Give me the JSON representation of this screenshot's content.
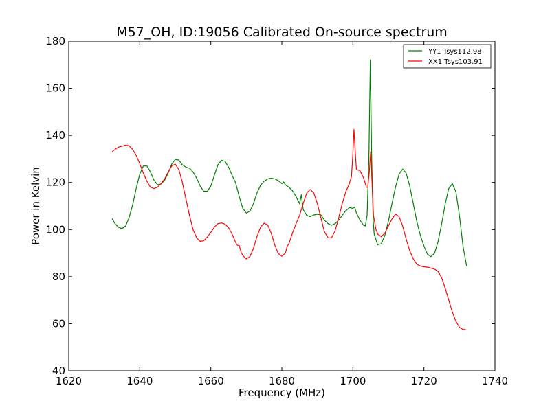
{
  "chart_data": {
    "type": "line",
    "title": "M57_OH, ID:19056 Calibrated On-source spectrum",
    "xlabel": "Frequency (MHz)",
    "ylabel": "Power in Kelvin",
    "xlim": [
      1620,
      1740
    ],
    "ylim": [
      40,
      180
    ],
    "xticks": [
      1620,
      1640,
      1660,
      1680,
      1700,
      1720,
      1740
    ],
    "yticks": [
      40,
      60,
      80,
      100,
      120,
      140,
      160,
      180
    ],
    "grid": false,
    "legend_position": "top-right",
    "series": [
      {
        "name": "YY1 Tsys112.98",
        "color": "#008000",
        "points": [
          [
            1632.2,
            104.7
          ],
          [
            1633.0,
            102.5
          ],
          [
            1634.0,
            101.0
          ],
          [
            1635.0,
            100.4
          ],
          [
            1636.0,
            101.5
          ],
          [
            1637.0,
            105.0
          ],
          [
            1638.0,
            110.5
          ],
          [
            1639.0,
            117.5
          ],
          [
            1640.0,
            123.5
          ],
          [
            1641.0,
            127.0
          ],
          [
            1642.0,
            127.0
          ],
          [
            1643.0,
            124.5
          ],
          [
            1644.0,
            121.0
          ],
          [
            1645.0,
            119.0
          ],
          [
            1646.0,
            119.3
          ],
          [
            1647.0,
            121.0
          ],
          [
            1648.0,
            124.0
          ],
          [
            1649.0,
            127.8
          ],
          [
            1650.0,
            129.8
          ],
          [
            1651.0,
            129.5
          ],
          [
            1652.0,
            127.5
          ],
          [
            1653.0,
            126.5
          ],
          [
            1654.0,
            126.0
          ],
          [
            1655.0,
            124.5
          ],
          [
            1656.0,
            121.8
          ],
          [
            1657.0,
            118.5
          ],
          [
            1658.0,
            116.3
          ],
          [
            1659.0,
            116.2
          ],
          [
            1660.0,
            118.5
          ],
          [
            1661.0,
            123.0
          ],
          [
            1662.0,
            127.5
          ],
          [
            1663.0,
            129.4
          ],
          [
            1664.0,
            129.0
          ],
          [
            1665.0,
            126.5
          ],
          [
            1666.0,
            123.0
          ],
          [
            1667.0,
            119.8
          ],
          [
            1668.0,
            114.0
          ],
          [
            1669.0,
            109.0
          ],
          [
            1670.0,
            107.0
          ],
          [
            1671.0,
            107.8
          ],
          [
            1672.0,
            111.0
          ],
          [
            1673.0,
            115.5
          ],
          [
            1674.0,
            118.8
          ],
          [
            1675.0,
            120.5
          ],
          [
            1676.0,
            121.5
          ],
          [
            1677.0,
            121.8
          ],
          [
            1678.0,
            121.5
          ],
          [
            1679.0,
            120.8
          ],
          [
            1680.0,
            119.5
          ],
          [
            1680.5,
            120.2
          ],
          [
            1681.0,
            119.0
          ],
          [
            1682.0,
            118.0
          ],
          [
            1683.0,
            116.5
          ],
          [
            1684.0,
            114.0
          ],
          [
            1685.0,
            111.0
          ],
          [
            1685.5,
            114.8
          ],
          [
            1686.0,
            108.5
          ],
          [
            1687.0,
            106.0
          ],
          [
            1688.0,
            105.5
          ],
          [
            1689.0,
            106.2
          ],
          [
            1690.0,
            106.5
          ],
          [
            1691.0,
            106.2
          ],
          [
            1692.0,
            104.0
          ],
          [
            1693.0,
            102.5
          ],
          [
            1694.0,
            101.8
          ],
          [
            1695.0,
            102.5
          ],
          [
            1696.0,
            104.0
          ],
          [
            1697.0,
            106.0
          ],
          [
            1698.0,
            108.0
          ],
          [
            1699.0,
            109.3
          ],
          [
            1700.0,
            109.0
          ],
          [
            1700.5,
            109.5
          ],
          [
            1701.0,
            107.0
          ],
          [
            1702.0,
            104.0
          ],
          [
            1703.0,
            101.8
          ],
          [
            1703.5,
            101.5
          ],
          [
            1704.0,
            106.0
          ],
          [
            1704.5,
            130.0
          ],
          [
            1704.9,
            172.0
          ],
          [
            1705.3,
            130.0
          ],
          [
            1705.7,
            104.0
          ],
          [
            1706.0,
            98.0
          ],
          [
            1707.0,
            93.5
          ],
          [
            1708.0,
            94.0
          ],
          [
            1709.0,
            97.5
          ],
          [
            1710.0,
            103.5
          ],
          [
            1711.0,
            111.0
          ],
          [
            1712.0,
            118.0
          ],
          [
            1713.0,
            123.5
          ],
          [
            1714.0,
            125.7
          ],
          [
            1715.0,
            124.0
          ],
          [
            1716.0,
            118.5
          ],
          [
            1717.0,
            111.0
          ],
          [
            1718.0,
            103.5
          ],
          [
            1719.0,
            97.5
          ],
          [
            1720.0,
            93.0
          ],
          [
            1721.0,
            89.5
          ],
          [
            1722.0,
            88.5
          ],
          [
            1723.0,
            90.0
          ],
          [
            1724.0,
            95.0
          ],
          [
            1725.0,
            102.5
          ],
          [
            1726.0,
            111.0
          ],
          [
            1727.0,
            117.5
          ],
          [
            1728.0,
            119.5
          ],
          [
            1729.0,
            116.0
          ],
          [
            1730.0,
            106.0
          ],
          [
            1731.0,
            93.0
          ],
          [
            1732.0,
            84.5
          ]
        ]
      },
      {
        "name": "XX1 Tsys103.91",
        "color": "#ff0000",
        "points": [
          [
            1632.2,
            133.0
          ],
          [
            1633.0,
            134.0
          ],
          [
            1634.0,
            135.0
          ],
          [
            1635.0,
            135.4
          ],
          [
            1636.0,
            135.8
          ],
          [
            1637.0,
            135.6
          ],
          [
            1638.0,
            134.0
          ],
          [
            1639.0,
            131.5
          ],
          [
            1640.0,
            128.0
          ],
          [
            1641.0,
            124.0
          ],
          [
            1642.0,
            120.5
          ],
          [
            1643.0,
            118.0
          ],
          [
            1644.0,
            117.4
          ],
          [
            1645.0,
            118.0
          ],
          [
            1646.0,
            119.5
          ],
          [
            1647.0,
            121.5
          ],
          [
            1648.0,
            124.5
          ],
          [
            1649.0,
            127.0
          ],
          [
            1650.0,
            127.8
          ],
          [
            1651.0,
            125.5
          ],
          [
            1652.0,
            120.0
          ],
          [
            1653.0,
            113.0
          ],
          [
            1654.0,
            106.0
          ],
          [
            1655.0,
            100.0
          ],
          [
            1656.0,
            96.5
          ],
          [
            1657.0,
            95.0
          ],
          [
            1658.0,
            95.2
          ],
          [
            1659.0,
            96.8
          ],
          [
            1660.0,
            98.8
          ],
          [
            1661.0,
            101.0
          ],
          [
            1662.0,
            102.5
          ],
          [
            1663.0,
            102.8
          ],
          [
            1664.0,
            102.3
          ],
          [
            1665.0,
            100.8
          ],
          [
            1666.0,
            98.0
          ],
          [
            1667.0,
            94.5
          ],
          [
            1667.5,
            93.3
          ],
          [
            1668.0,
            93.3
          ],
          [
            1668.5,
            90.5
          ],
          [
            1669.0,
            89.0
          ],
          [
            1670.0,
            87.5
          ],
          [
            1671.0,
            88.5
          ],
          [
            1672.0,
            92.0
          ],
          [
            1673.0,
            97.0
          ],
          [
            1674.0,
            101.0
          ],
          [
            1675.0,
            102.7
          ],
          [
            1676.0,
            102.0
          ],
          [
            1677.0,
            98.5
          ],
          [
            1678.0,
            93.5
          ],
          [
            1679.0,
            89.8
          ],
          [
            1680.0,
            88.7
          ],
          [
            1681.0,
            90.0
          ],
          [
            1681.5,
            93.0
          ],
          [
            1682.0,
            94.0
          ],
          [
            1683.0,
            98.5
          ],
          [
            1684.0,
            102.5
          ],
          [
            1685.0,
            106.0
          ],
          [
            1686.0,
            111.0
          ],
          [
            1687.0,
            115.5
          ],
          [
            1688.0,
            117.0
          ],
          [
            1689.0,
            115.5
          ],
          [
            1690.0,
            111.0
          ],
          [
            1691.0,
            105.0
          ],
          [
            1692.0,
            99.0
          ],
          [
            1693.0,
            96.5
          ],
          [
            1694.0,
            96.5
          ],
          [
            1695.0,
            99.5
          ],
          [
            1696.0,
            105.0
          ],
          [
            1697.0,
            111.0
          ],
          [
            1698.0,
            116.0
          ],
          [
            1699.0,
            119.5
          ],
          [
            1699.6,
            122.5
          ],
          [
            1700.0,
            132.0
          ],
          [
            1700.3,
            142.5
          ],
          [
            1700.7,
            132.0
          ],
          [
            1701.0,
            125.5
          ],
          [
            1702.0,
            125.0
          ],
          [
            1703.0,
            122.0
          ],
          [
            1703.8,
            118.0
          ],
          [
            1704.2,
            118.0
          ],
          [
            1704.6,
            124.0
          ],
          [
            1705.0,
            133.0
          ],
          [
            1705.4,
            120.0
          ],
          [
            1705.8,
            106.0
          ],
          [
            1706.5,
            100.0
          ],
          [
            1707.0,
            98.0
          ],
          [
            1708.0,
            97.0
          ],
          [
            1709.0,
            98.5
          ],
          [
            1710.0,
            101.5
          ],
          [
            1711.0,
            104.5
          ],
          [
            1712.0,
            106.5
          ],
          [
            1713.0,
            105.5
          ],
          [
            1714.0,
            101.5
          ],
          [
            1715.0,
            96.0
          ],
          [
            1716.0,
            91.0
          ],
          [
            1717.0,
            87.5
          ],
          [
            1718.0,
            85.3
          ],
          [
            1719.0,
            84.5
          ],
          [
            1720.0,
            84.2
          ],
          [
            1721.0,
            84.0
          ],
          [
            1722.0,
            83.6
          ],
          [
            1723.0,
            83.2
          ],
          [
            1724.0,
            82.2
          ],
          [
            1725.0,
            79.5
          ],
          [
            1726.0,
            75.0
          ],
          [
            1727.0,
            70.0
          ],
          [
            1728.0,
            65.0
          ],
          [
            1729.0,
            61.0
          ],
          [
            1730.0,
            58.5
          ],
          [
            1731.0,
            57.6
          ],
          [
            1731.8,
            57.5
          ]
        ]
      }
    ]
  }
}
